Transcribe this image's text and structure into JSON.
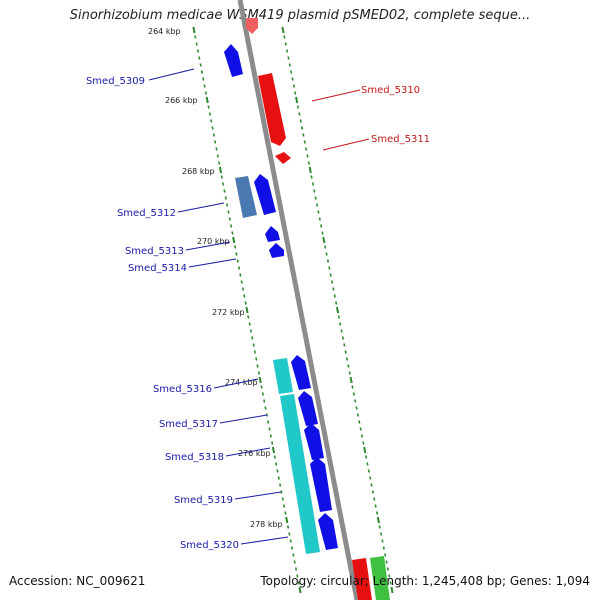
{
  "header": {
    "title": "Sinorhizobium medicae WSM419 plasmid pSMED02, complete seque..."
  },
  "footer": {
    "accession": "Accession: NC_009621",
    "summary": "Topology: circular; Length: 1,245,408 bp; Genes: 1,094"
  },
  "colors": {
    "reverse_strand": "#1010e6",
    "forward_strand": "#e61010",
    "reverse_label": "#1a1aa6",
    "forward_label": "#c01818",
    "backbone": "#8c8c8c",
    "tick": "#2f8a2f",
    "cyan_track": "#20c8c8",
    "steel_track": "#4a78b0",
    "green_track": "#40c040"
  },
  "ruler": {
    "labels": [
      "264 kbp",
      "266 kbp",
      "268 kbp",
      "270 kbp",
      "272 kbp",
      "274 kbp",
      "276 kbp",
      "278 kbp"
    ]
  },
  "genes": {
    "left": [
      {
        "name": "Smed_5309"
      },
      {
        "name": "Smed_5312"
      },
      {
        "name": "Smed_5313"
      },
      {
        "name": "Smed_5314"
      },
      {
        "name": "Smed_5316"
      },
      {
        "name": "Smed_5317"
      },
      {
        "name": "Smed_5318"
      },
      {
        "name": "Smed_5319"
      },
      {
        "name": "Smed_5320"
      }
    ],
    "right": [
      {
        "name": "Smed_5310"
      },
      {
        "name": "Smed_5311"
      }
    ]
  }
}
